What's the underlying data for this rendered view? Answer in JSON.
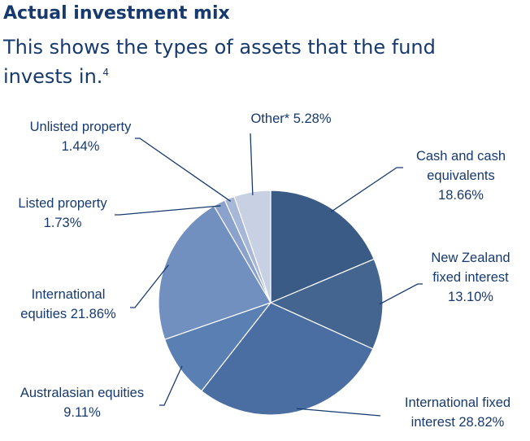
{
  "title": "Actual investment mix",
  "subtitle": "This shows the types of assets that the fund invests in.",
  "subtitle_footnote": "4",
  "chart_data": {
    "type": "pie",
    "title": "Actual investment mix",
    "slices": [
      {
        "label_lines": [
          "Cash and cash",
          "equivalents",
          "18.66%"
        ],
        "value": 18.66,
        "color": "#3b5b87"
      },
      {
        "label_lines": [
          "New Zealand",
          "fixed interest",
          "13.10%"
        ],
        "value": 13.1,
        "color": "#43658f"
      },
      {
        "label_lines": [
          "International fixed",
          "interest 28.82%"
        ],
        "value": 28.82,
        "color": "#4a6ea1"
      },
      {
        "label_lines": [
          "Australasian equities",
          "9.11%"
        ],
        "value": 9.11,
        "color": "#5a7fb3"
      },
      {
        "label_lines": [
          "International",
          "equities 21.86%"
        ],
        "value": 21.86,
        "color": "#7190c0"
      },
      {
        "label_lines": [
          "Listed property",
          "1.73%"
        ],
        "value": 1.73,
        "color": "#8aa2cc"
      },
      {
        "label_lines": [
          "Unlisted property",
          "1.44%"
        ],
        "value": 1.44,
        "color": "#a7b7d8"
      },
      {
        "label_lines": [
          "Other* 5.28%"
        ],
        "value": 5.28,
        "color": "#c8d0e4"
      }
    ],
    "legend": "none",
    "label_color": "#173a6e",
    "leader_color": "#173a6e"
  }
}
